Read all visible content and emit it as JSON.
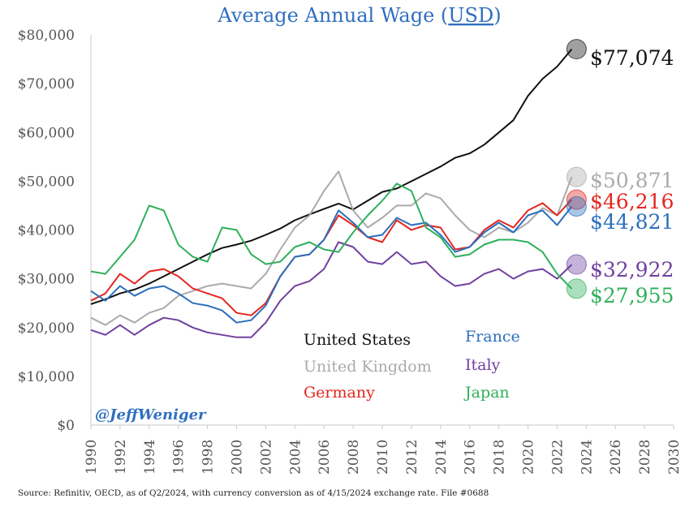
{
  "chart_data": {
    "type": "line",
    "title": "Average Annual Wage (USD)",
    "title_prefix": "Average Annual Wage (",
    "title_underlined": "USD",
    "title_suffix": ")",
    "xlabel": "",
    "ylabel": "",
    "xlim": [
      1990,
      2030
    ],
    "ylim": [
      0,
      80000
    ],
    "x_ticks": [
      1990,
      1992,
      1994,
      1996,
      1998,
      2000,
      2002,
      2004,
      2006,
      2008,
      2010,
      2012,
      2014,
      2016,
      2018,
      2020,
      2022,
      2024,
      2026,
      2028,
      2030
    ],
    "y_ticks": [
      0,
      10000,
      20000,
      30000,
      40000,
      50000,
      60000,
      70000,
      80000
    ],
    "y_tick_labels": [
      "$0",
      "$10,000",
      "$20,000",
      "$30,000",
      "$40,000",
      "$50,000",
      "$60,000",
      "$70,000",
      "$80,000"
    ],
    "handle": "@JeffWeniger",
    "source": "Source: Refinitiv, OECD, as of Q2/2024, with currency conversion as of 4/15/2024 exchange rate. File #0688",
    "series": [
      {
        "name": "United States",
        "color": "#111111",
        "end_label": "$77,074",
        "end_value": 77074,
        "points": [
          [
            1990,
            24800
          ],
          [
            1991,
            25800
          ],
          [
            1992,
            27000
          ],
          [
            1993,
            27800
          ],
          [
            1994,
            29000
          ],
          [
            1995,
            30500
          ],
          [
            1996,
            32000
          ],
          [
            1997,
            33500
          ],
          [
            1998,
            35000
          ],
          [
            1999,
            36300
          ],
          [
            2000,
            37000
          ],
          [
            2001,
            37800
          ],
          [
            2002,
            39000
          ],
          [
            2003,
            40300
          ],
          [
            2004,
            42000
          ],
          [
            2005,
            43200
          ],
          [
            2006,
            44300
          ],
          [
            2007,
            45400
          ],
          [
            2008,
            44200
          ],
          [
            2009,
            46000
          ],
          [
            2010,
            47800
          ],
          [
            2011,
            48500
          ],
          [
            2012,
            50000
          ],
          [
            2013,
            51500
          ],
          [
            2014,
            53000
          ],
          [
            2015,
            54800
          ],
          [
            2016,
            55700
          ],
          [
            2017,
            57500
          ],
          [
            2018,
            60000
          ],
          [
            2019,
            62500
          ],
          [
            2020,
            67500
          ],
          [
            2021,
            71000
          ],
          [
            2022,
            73500
          ],
          [
            2023,
            77074
          ]
        ]
      },
      {
        "name": "United Kingdom",
        "color": "#aaaaaa",
        "end_label": "$50,871",
        "end_value": 50871,
        "points": [
          [
            1990,
            22000
          ],
          [
            1991,
            20500
          ],
          [
            1992,
            22500
          ],
          [
            1993,
            21000
          ],
          [
            1994,
            23000
          ],
          [
            1995,
            24000
          ],
          [
            1996,
            26500
          ],
          [
            1997,
            27500
          ],
          [
            1998,
            28500
          ],
          [
            1999,
            29000
          ],
          [
            2000,
            28500
          ],
          [
            2001,
            28000
          ],
          [
            2002,
            31000
          ],
          [
            2003,
            36000
          ],
          [
            2004,
            40500
          ],
          [
            2005,
            43000
          ],
          [
            2006,
            48000
          ],
          [
            2007,
            52000
          ],
          [
            2008,
            44000
          ],
          [
            2009,
            40500
          ],
          [
            2010,
            42500
          ],
          [
            2011,
            45000
          ],
          [
            2012,
            45000
          ],
          [
            2013,
            47500
          ],
          [
            2014,
            46500
          ],
          [
            2015,
            43000
          ],
          [
            2016,
            40000
          ],
          [
            2017,
            38500
          ],
          [
            2018,
            40500
          ],
          [
            2019,
            39500
          ],
          [
            2020,
            41500
          ],
          [
            2021,
            44500
          ],
          [
            2022,
            43000
          ],
          [
            2023,
            50871
          ]
        ]
      },
      {
        "name": "Germany",
        "color": "#e3261f",
        "end_label": "$46,216",
        "end_value": 46216,
        "points": [
          [
            1990,
            25500
          ],
          [
            1991,
            27000
          ],
          [
            1992,
            31000
          ],
          [
            1993,
            29000
          ],
          [
            1994,
            31500
          ],
          [
            1995,
            32000
          ],
          [
            1996,
            30500
          ],
          [
            1997,
            28000
          ],
          [
            1998,
            27000
          ],
          [
            1999,
            26000
          ],
          [
            2000,
            23000
          ],
          [
            2001,
            22500
          ],
          [
            2002,
            25000
          ],
          [
            2003,
            30500
          ],
          [
            2004,
            34500
          ],
          [
            2005,
            35000
          ],
          [
            2006,
            38000
          ],
          [
            2007,
            43000
          ],
          [
            2008,
            41000
          ],
          [
            2009,
            38500
          ],
          [
            2010,
            37500
          ],
          [
            2011,
            42000
          ],
          [
            2012,
            40000
          ],
          [
            2013,
            41000
          ],
          [
            2014,
            40500
          ],
          [
            2015,
            36000
          ],
          [
            2016,
            36500
          ],
          [
            2017,
            40000
          ],
          [
            2018,
            42000
          ],
          [
            2019,
            40500
          ],
          [
            2020,
            44000
          ],
          [
            2021,
            45500
          ],
          [
            2022,
            43000
          ],
          [
            2023,
            46216
          ]
        ]
      },
      {
        "name": "France",
        "color": "#2b6fbd",
        "end_label": "$44,821",
        "end_value": 44821,
        "points": [
          [
            1990,
            27500
          ],
          [
            1991,
            25500
          ],
          [
            1992,
            28500
          ],
          [
            1993,
            26500
          ],
          [
            1994,
            28000
          ],
          [
            1995,
            28500
          ],
          [
            1996,
            27000
          ],
          [
            1997,
            25000
          ],
          [
            1998,
            24500
          ],
          [
            1999,
            23500
          ],
          [
            2000,
            21000
          ],
          [
            2001,
            21500
          ],
          [
            2002,
            24500
          ],
          [
            2003,
            30500
          ],
          [
            2004,
            34500
          ],
          [
            2005,
            35000
          ],
          [
            2006,
            38000
          ],
          [
            2007,
            44000
          ],
          [
            2008,
            41500
          ],
          [
            2009,
            38500
          ],
          [
            2010,
            39000
          ],
          [
            2011,
            42500
          ],
          [
            2012,
            41000
          ],
          [
            2013,
            41500
          ],
          [
            2014,
            39000
          ],
          [
            2015,
            35500
          ],
          [
            2016,
            36500
          ],
          [
            2017,
            39500
          ],
          [
            2018,
            41500
          ],
          [
            2019,
            39500
          ],
          [
            2020,
            43000
          ],
          [
            2021,
            44000
          ],
          [
            2022,
            41000
          ],
          [
            2023,
            44821
          ]
        ]
      },
      {
        "name": "Italy",
        "color": "#7040a0",
        "end_label": "$32,922",
        "end_value": 32922,
        "points": [
          [
            1990,
            19500
          ],
          [
            1991,
            18500
          ],
          [
            1992,
            20500
          ],
          [
            1993,
            18500
          ],
          [
            1994,
            20500
          ],
          [
            1995,
            22000
          ],
          [
            1996,
            21500
          ],
          [
            1997,
            20000
          ],
          [
            1998,
            19000
          ],
          [
            1999,
            18500
          ],
          [
            2000,
            18000
          ],
          [
            2001,
            18000
          ],
          [
            2002,
            21000
          ],
          [
            2003,
            25500
          ],
          [
            2004,
            28500
          ],
          [
            2005,
            29500
          ],
          [
            2006,
            32000
          ],
          [
            2007,
            37500
          ],
          [
            2008,
            36500
          ],
          [
            2009,
            33500
          ],
          [
            2010,
            33000
          ],
          [
            2011,
            35500
          ],
          [
            2012,
            33000
          ],
          [
            2013,
            33500
          ],
          [
            2014,
            30500
          ],
          [
            2015,
            28500
          ],
          [
            2016,
            29000
          ],
          [
            2017,
            31000
          ],
          [
            2018,
            32000
          ],
          [
            2019,
            30000
          ],
          [
            2020,
            31500
          ],
          [
            2021,
            32000
          ],
          [
            2022,
            30000
          ],
          [
            2023,
            32922
          ]
        ]
      },
      {
        "name": "Japan",
        "color": "#2fb05a",
        "end_label": "$27,955",
        "end_value": 27955,
        "points": [
          [
            1990,
            31500
          ],
          [
            1991,
            31000
          ],
          [
            1992,
            34500
          ],
          [
            1993,
            38000
          ],
          [
            1994,
            45000
          ],
          [
            1995,
            44000
          ],
          [
            1996,
            37000
          ],
          [
            1997,
            34500
          ],
          [
            1998,
            33500
          ],
          [
            1999,
            40500
          ],
          [
            2000,
            40000
          ],
          [
            2001,
            35000
          ],
          [
            2002,
            33000
          ],
          [
            2003,
            33500
          ],
          [
            2004,
            36500
          ],
          [
            2005,
            37500
          ],
          [
            2006,
            36000
          ],
          [
            2007,
            35500
          ],
          [
            2008,
            39500
          ],
          [
            2009,
            43000
          ],
          [
            2010,
            46000
          ],
          [
            2011,
            49500
          ],
          [
            2012,
            48000
          ],
          [
            2013,
            40500
          ],
          [
            2014,
            38500
          ],
          [
            2015,
            34500
          ],
          [
            2016,
            35000
          ],
          [
            2017,
            37000
          ],
          [
            2018,
            38000
          ],
          [
            2019,
            38000
          ],
          [
            2020,
            37500
          ],
          [
            2021,
            35500
          ],
          [
            2022,
            31000
          ],
          [
            2023,
            27955
          ]
        ]
      }
    ]
  }
}
